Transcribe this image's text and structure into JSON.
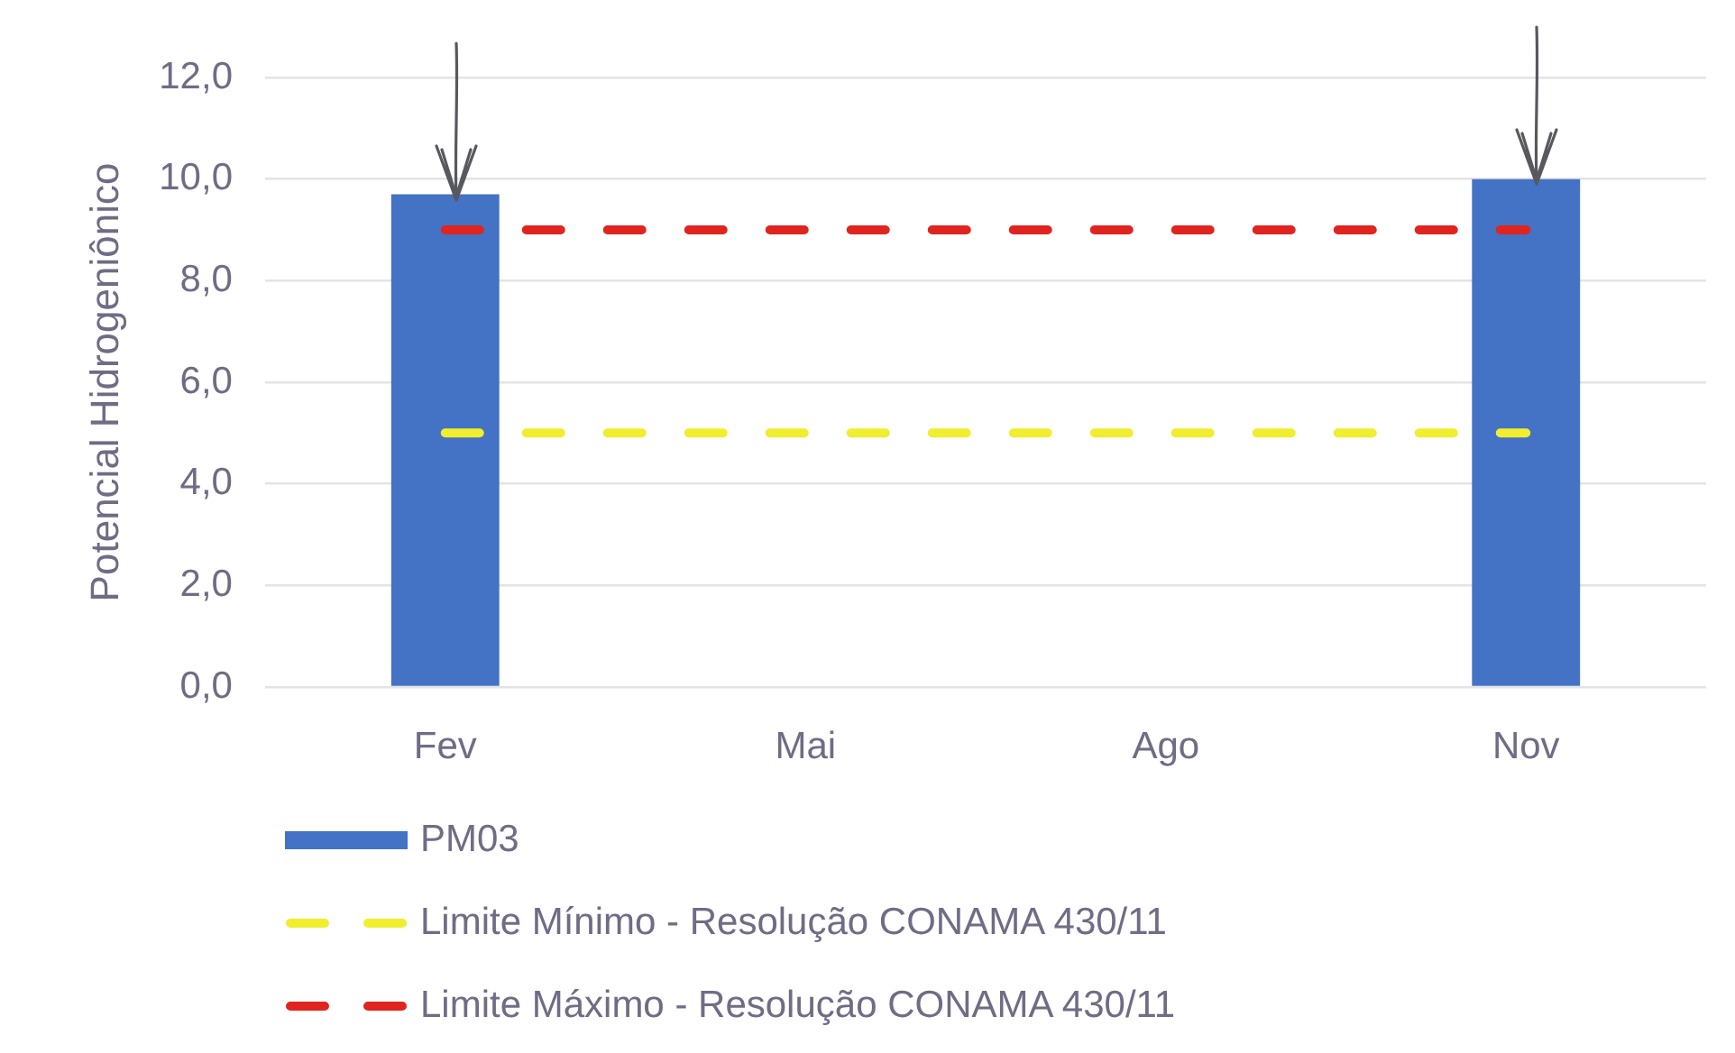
{
  "chart_data": {
    "type": "bar",
    "ylabel": "Potencial Hidrogeniônico",
    "categories": [
      "Fev",
      "Mai",
      "Ago",
      "Nov"
    ],
    "series": [
      {
        "name": "PM03",
        "color": "#4472c4",
        "values": [
          9.7,
          null,
          null,
          10.0
        ]
      },
      {
        "name": "Limite Mínimo - Resolução CONAMA 430/11",
        "type": "line",
        "color": "#f0ee2e",
        "values": [
          5,
          5,
          5,
          5
        ],
        "line_style": "dashed",
        "marker": "none"
      },
      {
        "name": "Limite Máximo - Resolução CONAMA 430/11",
        "type": "line",
        "color": "#e0241f",
        "values": [
          9,
          9,
          9,
          9
        ],
        "line_style": "dashed",
        "marker": "none"
      }
    ],
    "ylim": [
      0,
      12
    ],
    "yticks": [
      {
        "value": 0,
        "label": "0,0"
      },
      {
        "value": 2,
        "label": "2,0"
      },
      {
        "value": 4,
        "label": "4,0"
      },
      {
        "value": 6,
        "label": "6,0"
      },
      {
        "value": 8,
        "label": "8,0"
      },
      {
        "value": 10,
        "label": "10,0"
      },
      {
        "value": 12,
        "label": "12,0"
      }
    ],
    "grid": "y",
    "legend": "bottom"
  }
}
